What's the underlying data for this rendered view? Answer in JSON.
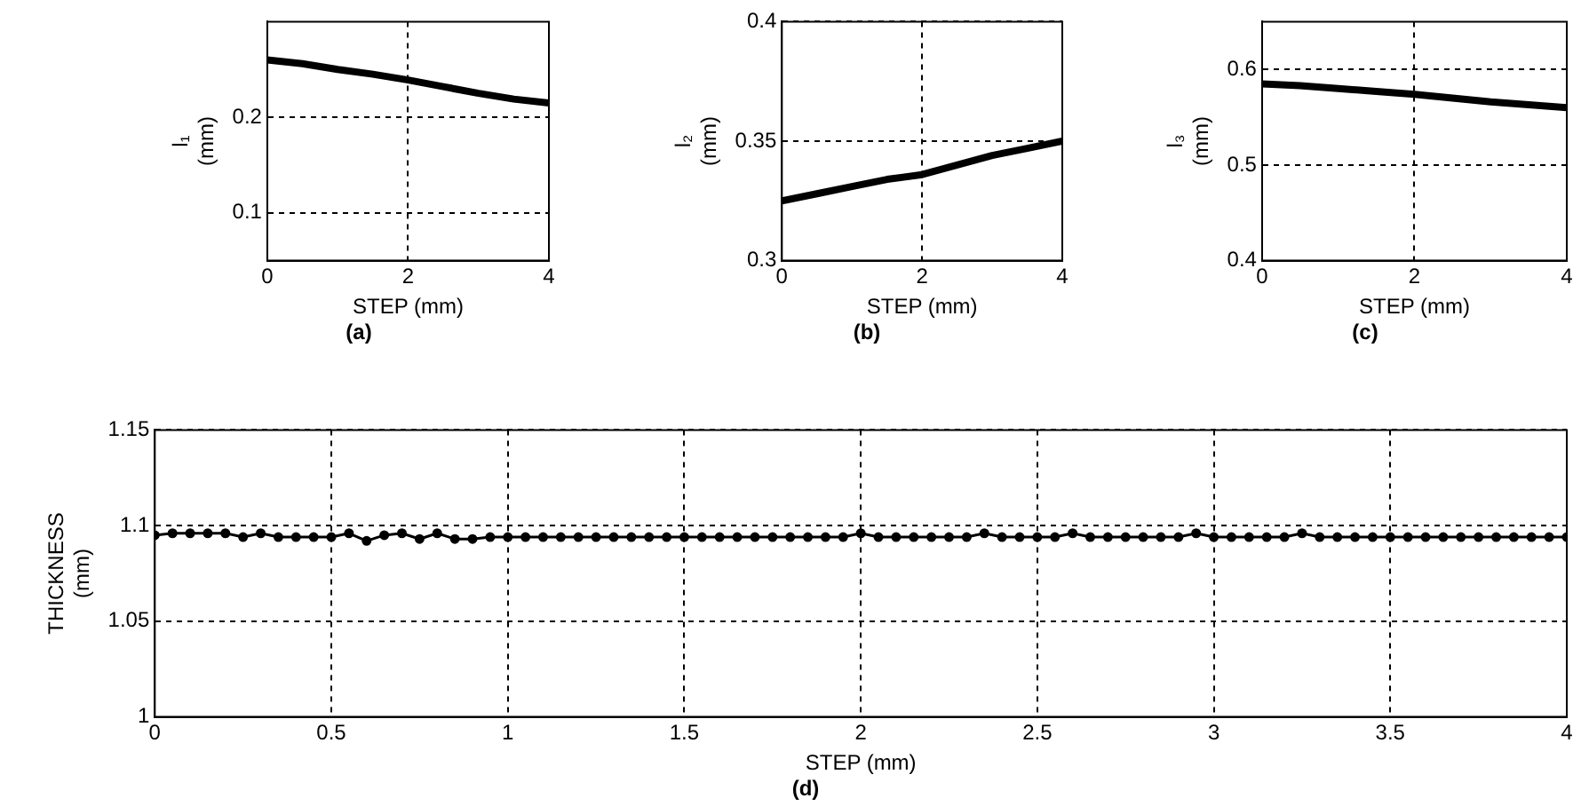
{
  "chart_data": [
    {
      "type": "line",
      "title": "(a)",
      "xlabel": "STEP (mm)",
      "ylabel": "l₁ (mm)",
      "xlim": [
        0,
        4
      ],
      "xticks": [
        0,
        2,
        4
      ],
      "ylim": [
        0.05,
        0.3
      ],
      "yticks": [
        0.1,
        0.2
      ],
      "grid": true,
      "marker": "none",
      "line_style": "solid",
      "series": [
        {
          "color": "#000000",
          "x": [
            0,
            0.5,
            1,
            1.5,
            2,
            2.5,
            3,
            3.5,
            4
          ],
          "values": [
            0.26,
            0.256,
            0.25,
            0.245,
            0.239,
            0.232,
            0.225,
            0.219,
            0.215
          ]
        }
      ]
    },
    {
      "type": "line",
      "title": "(b)",
      "xlabel": "STEP (mm)",
      "ylabel": "l₂ (mm)",
      "xlim": [
        0,
        4
      ],
      "xticks": [
        0,
        2,
        4
      ],
      "ylim": [
        0.3,
        0.4
      ],
      "yticks": [
        0.3,
        0.35,
        0.4
      ],
      "grid": true,
      "marker": "none",
      "line_style": "solid",
      "series": [
        {
          "color": "#000000",
          "x": [
            0,
            0.5,
            1,
            1.5,
            2,
            2.5,
            3,
            3.5,
            4
          ],
          "values": [
            0.325,
            0.328,
            0.331,
            0.334,
            0.336,
            0.34,
            0.344,
            0.347,
            0.35
          ]
        }
      ]
    },
    {
      "type": "line",
      "title": "(c)",
      "xlabel": "STEP (mm)",
      "ylabel": "l₃ (mm)",
      "xlim": [
        0,
        4
      ],
      "xticks": [
        0,
        2,
        4
      ],
      "ylim": [
        0.4,
        0.65
      ],
      "yticks": [
        0.4,
        0.5,
        0.6
      ],
      "grid": true,
      "marker": "none",
      "line_style": "solid",
      "series": [
        {
          "color": "#000000",
          "x": [
            0,
            0.5,
            1,
            1.5,
            2,
            2.5,
            3,
            3.5,
            4
          ],
          "values": [
            0.585,
            0.583,
            0.58,
            0.577,
            0.574,
            0.57,
            0.566,
            0.563,
            0.56
          ]
        }
      ]
    },
    {
      "type": "line",
      "title": "(d)",
      "xlabel": "STEP (mm)",
      "ylabel": "THICKNESS (mm)",
      "xlim": [
        0,
        4
      ],
      "xticks": [
        0,
        0.5,
        1,
        1.5,
        2,
        2.5,
        3,
        3.5,
        4
      ],
      "ylim": [
        1,
        1.15
      ],
      "yticks": [
        1,
        1.05,
        1.1,
        1.15
      ],
      "grid": true,
      "marker": "circle",
      "line_style": "solid",
      "series": [
        {
          "color": "#000000",
          "x": [
            0,
            0.05,
            0.1,
            0.15,
            0.2,
            0.25,
            0.3,
            0.35,
            0.4,
            0.45,
            0.5,
            0.55,
            0.6,
            0.65,
            0.7,
            0.75,
            0.8,
            0.85,
            0.9,
            0.95,
            1,
            1.05,
            1.1,
            1.15,
            1.2,
            1.25,
            1.3,
            1.35,
            1.4,
            1.45,
            1.5,
            1.55,
            1.6,
            1.65,
            1.7,
            1.75,
            1.8,
            1.85,
            1.9,
            1.95,
            2,
            2.05,
            2.1,
            2.15,
            2.2,
            2.25,
            2.3,
            2.35,
            2.4,
            2.45,
            2.5,
            2.55,
            2.6,
            2.65,
            2.7,
            2.75,
            2.8,
            2.85,
            2.9,
            2.95,
            3,
            3.05,
            3.1,
            3.15,
            3.2,
            3.25,
            3.3,
            3.35,
            3.4,
            3.45,
            3.5,
            3.55,
            3.6,
            3.65,
            3.7,
            3.75,
            3.8,
            3.85,
            3.9,
            3.95,
            4
          ],
          "values": [
            1.095,
            1.096,
            1.096,
            1.096,
            1.096,
            1.094,
            1.096,
            1.094,
            1.094,
            1.094,
            1.094,
            1.096,
            1.092,
            1.095,
            1.096,
            1.093,
            1.096,
            1.093,
            1.093,
            1.094,
            1.094,
            1.094,
            1.094,
            1.094,
            1.094,
            1.094,
            1.094,
            1.094,
            1.094,
            1.094,
            1.094,
            1.094,
            1.094,
            1.094,
            1.094,
            1.094,
            1.094,
            1.094,
            1.094,
            1.094,
            1.096,
            1.094,
            1.094,
            1.094,
            1.094,
            1.094,
            1.094,
            1.096,
            1.094,
            1.094,
            1.094,
            1.094,
            1.096,
            1.094,
            1.094,
            1.094,
            1.094,
            1.094,
            1.094,
            1.096,
            1.094,
            1.094,
            1.094,
            1.094,
            1.094,
            1.096,
            1.094,
            1.094,
            1.094,
            1.094,
            1.094,
            1.094,
            1.094,
            1.094,
            1.094,
            1.094,
            1.094,
            1.094,
            1.094,
            1.094,
            1.094
          ]
        }
      ]
    }
  ]
}
